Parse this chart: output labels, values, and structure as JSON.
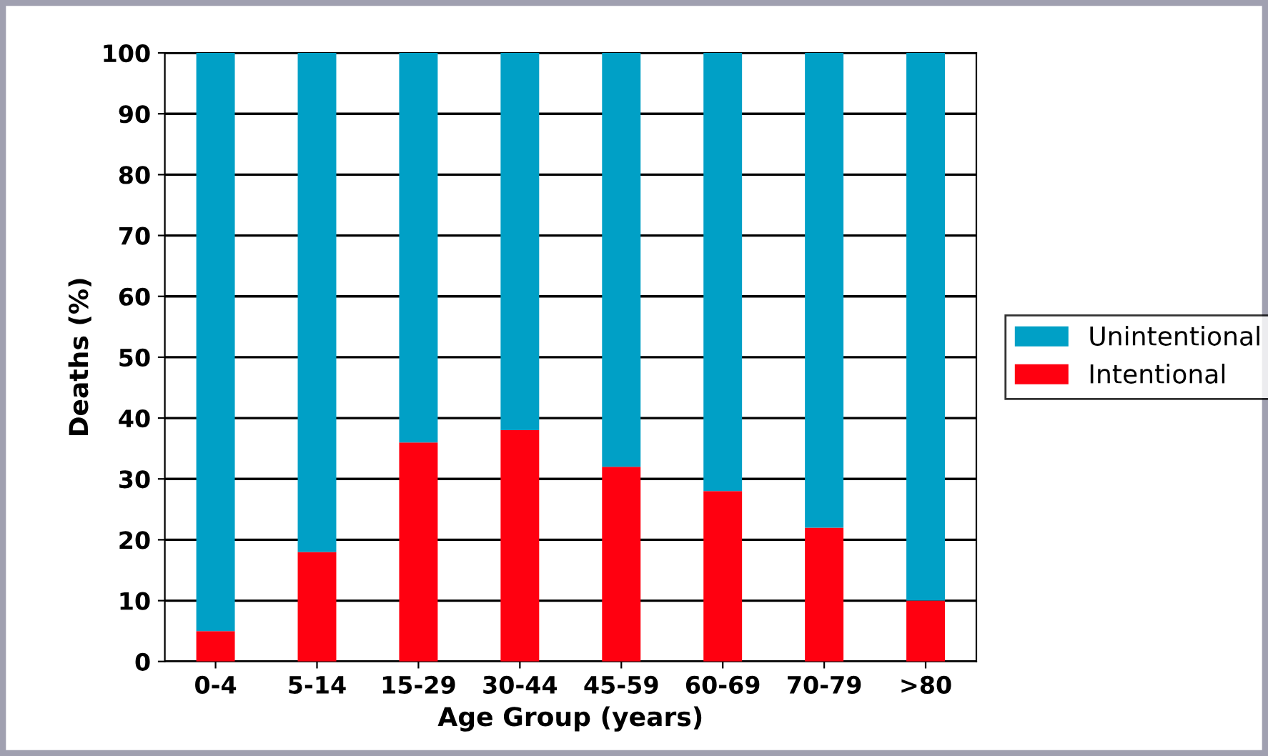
{
  "chart_data": {
    "type": "bar",
    "stacked": true,
    "xlabel": "Age Group (years)",
    "ylabel": "Deaths (%)",
    "categories": [
      "0-4",
      "5-14",
      "15-29",
      "30-44",
      "45-59",
      "60-69",
      "70-79",
      ">80"
    ],
    "series": [
      {
        "name": "Intentional",
        "color": "#ff0010",
        "values": [
          5,
          18,
          36,
          38,
          32,
          28,
          22,
          10
        ]
      },
      {
        "name": "Unintentional",
        "color": "#00a0c6",
        "values": [
          95,
          82,
          64,
          62,
          68,
          72,
          78,
          90
        ]
      }
    ],
    "ylim": [
      0,
      100
    ],
    "yticks": [
      0,
      10,
      20,
      30,
      40,
      50,
      60,
      70,
      80,
      90,
      100
    ],
    "grid": "y",
    "legend": "right"
  }
}
